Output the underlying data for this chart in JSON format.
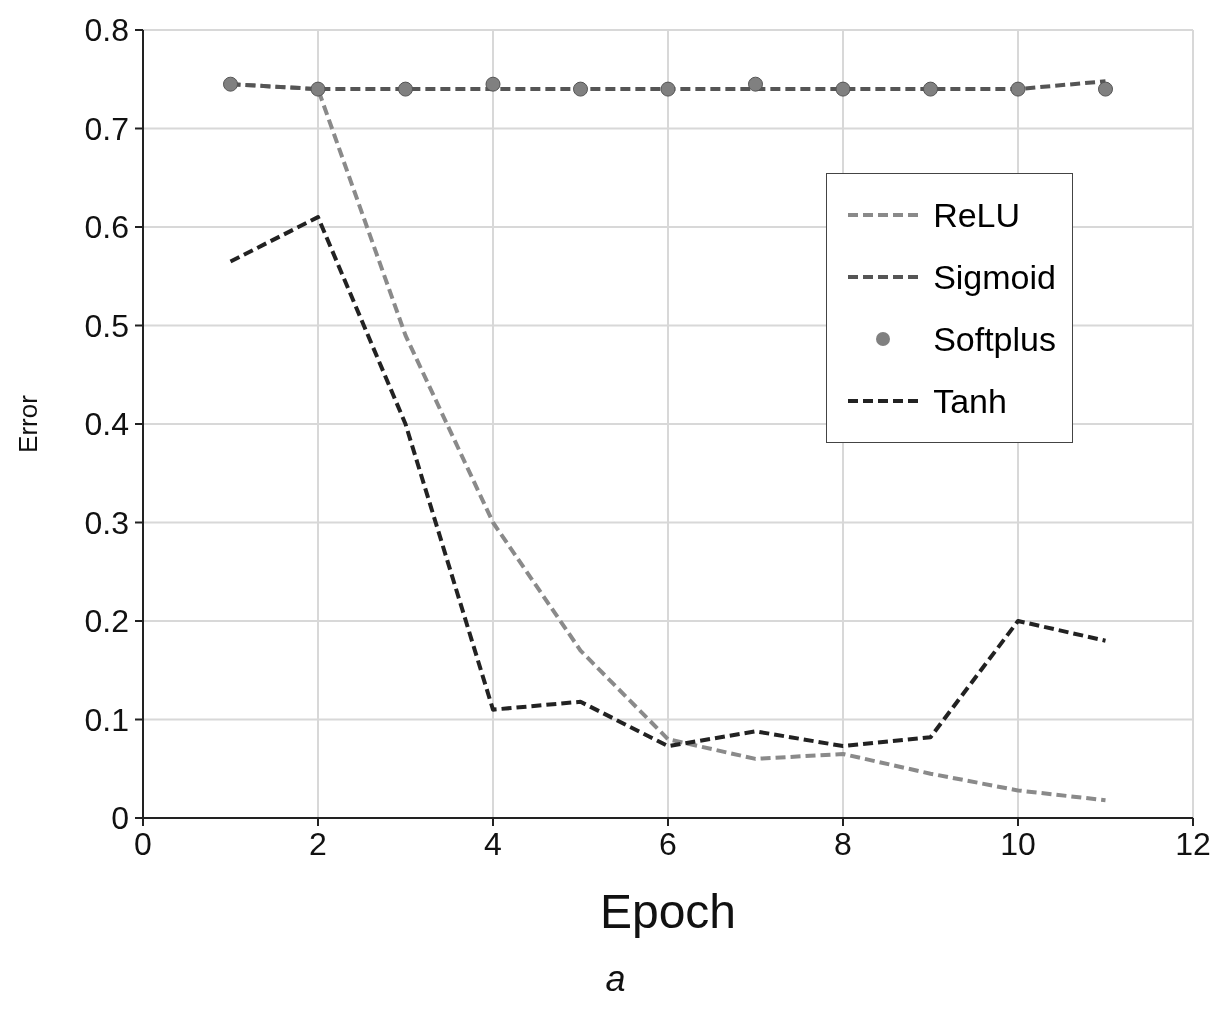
{
  "chart_data": {
    "type": "line",
    "xlabel": "Epoch",
    "ylabel": "Error",
    "annotations": [
      "a"
    ],
    "x": [
      1,
      2,
      3,
      4,
      5,
      6,
      7,
      8,
      9,
      10,
      11
    ],
    "series": [
      {
        "name": "ReLU",
        "color": "#8a8a8a",
        "line_style": "dashed",
        "marker": "none",
        "values": [
          0.745,
          0.74,
          0.49,
          0.3,
          0.17,
          0.08,
          0.06,
          0.065,
          0.045,
          0.028,
          0.018
        ]
      },
      {
        "name": "Sigmoid",
        "color": "#555555",
        "line_style": "dashed",
        "marker": "none",
        "values": [
          0.745,
          0.74,
          0.74,
          0.74,
          0.74,
          0.74,
          0.74,
          0.74,
          0.74,
          0.74,
          0.748
        ]
      },
      {
        "name": "Softplus",
        "type": "scatter",
        "color": "#808080",
        "marker": "circle",
        "values": [
          0.745,
          0.74,
          0.74,
          0.745,
          0.74,
          0.74,
          0.745,
          0.74,
          0.74,
          0.74,
          0.74
        ]
      },
      {
        "name": "Tanh",
        "color": "#222222",
        "line_style": "dashed",
        "marker": "none",
        "values": [
          0.565,
          0.61,
          0.4,
          0.11,
          0.118,
          0.073,
          0.088,
          0.073,
          0.082,
          0.2,
          0.18
        ]
      }
    ],
    "xlim": [
      0,
      12
    ],
    "xticks": [
      0,
      2,
      4,
      6,
      8,
      10,
      12
    ],
    "ylim": [
      0,
      0.8
    ],
    "yticks": [
      0,
      0.1,
      0.2,
      0.3,
      0.4,
      0.5,
      0.6,
      0.7,
      0.8
    ],
    "grid": true,
    "legend": "top right"
  }
}
